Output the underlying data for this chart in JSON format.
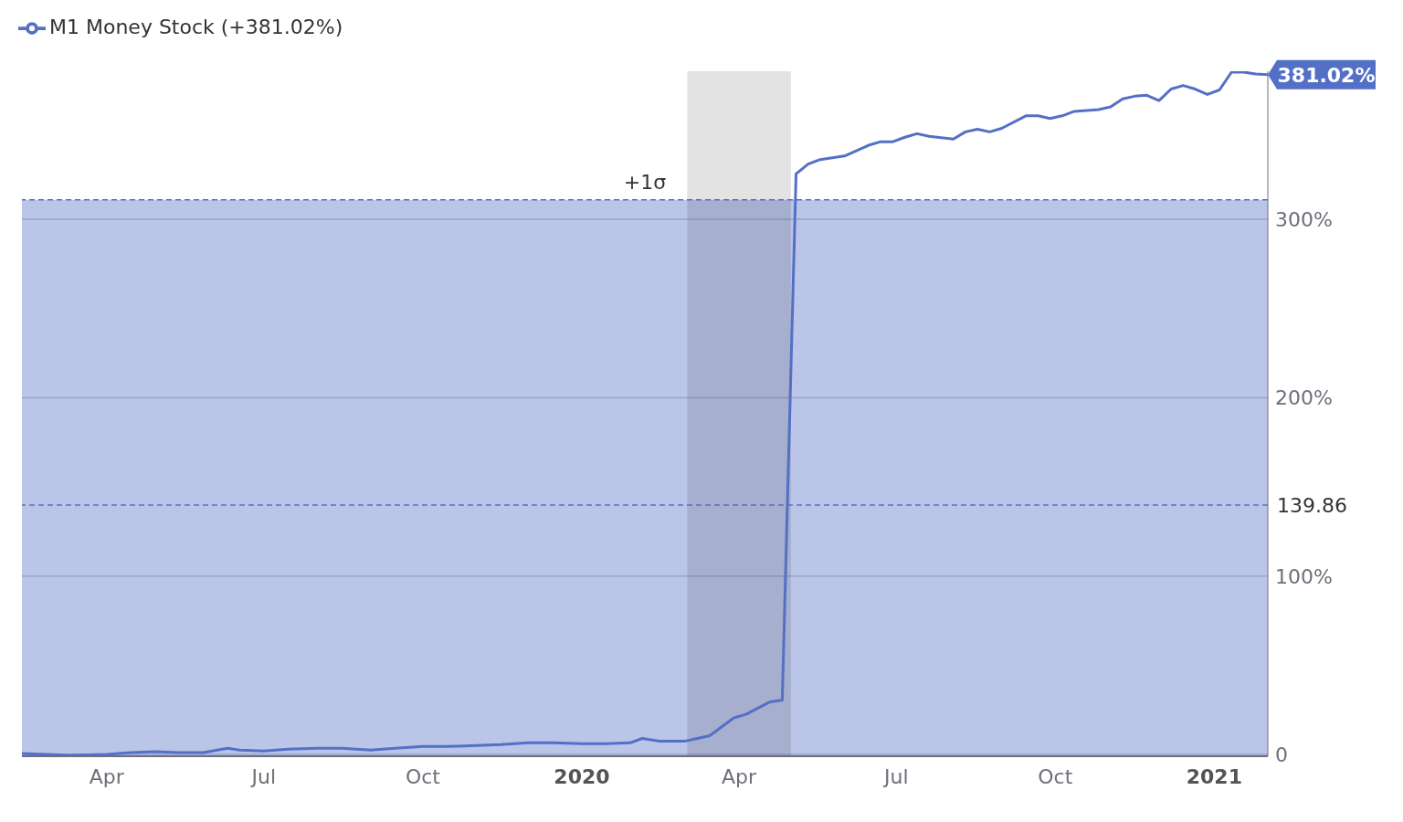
{
  "chart_data": {
    "type": "line",
    "x": [
      "2019-02-11",
      "2019-02-25",
      "2019-03-11",
      "2019-04-01",
      "2019-04-15",
      "2019-04-29",
      "2019-05-13",
      "2019-05-27",
      "2019-06-10",
      "2019-06-17",
      "2019-07-01",
      "2019-07-15",
      "2019-08-01",
      "2019-08-15",
      "2019-09-01",
      "2019-09-15",
      "2019-10-01",
      "2019-10-15",
      "2019-11-01",
      "2019-11-15",
      "2019-12-01",
      "2019-12-15",
      "2020-01-01",
      "2020-01-15",
      "2020-01-29",
      "2020-02-05",
      "2020-02-15",
      "2020-03-01",
      "2020-03-15",
      "2020-03-29",
      "2020-04-05",
      "2020-04-19",
      "2020-04-26",
      "2020-05-04",
      "2020-05-11",
      "2020-05-18",
      "2020-06-01",
      "2020-06-15",
      "2020-06-22",
      "2020-06-29",
      "2020-07-06",
      "2020-07-13",
      "2020-07-20",
      "2020-08-03",
      "2020-08-10",
      "2020-08-17",
      "2020-08-24",
      "2020-08-31",
      "2020-09-14",
      "2020-09-21",
      "2020-09-28",
      "2020-10-05",
      "2020-10-12",
      "2020-10-26",
      "2020-11-02",
      "2020-11-09",
      "2020-11-16",
      "2020-11-23",
      "2020-11-30",
      "2020-12-07",
      "2020-12-14",
      "2020-12-21",
      "2020-12-28",
      "2021-01-04",
      "2021-01-11",
      "2021-01-18",
      "2021-01-25",
      "2021-02-01"
    ],
    "series": [
      {
        "name": "M1 Money Stock (+381.02%)",
        "color": "#5470c6",
        "values": [
          0.5,
          0,
          -0.5,
          0,
          1,
          1.5,
          1,
          1,
          3.5,
          2.5,
          2,
          3,
          3.5,
          3.5,
          2.5,
          3.5,
          4.5,
          4.5,
          5,
          5.5,
          6.5,
          6.5,
          6,
          6,
          6.5,
          9,
          7.5,
          7.5,
          10.5,
          20.5,
          22.5,
          29.5,
          30.5,
          325.5,
          331,
          333.5,
          335.5,
          341.5,
          343.5,
          343.5,
          346,
          348,
          346.5,
          345,
          349,
          350.5,
          349,
          351,
          358,
          358,
          356.5,
          358,
          360.5,
          361.5,
          363,
          367.5,
          369,
          369.5,
          366.5,
          373,
          375,
          373,
          370,
          372.5,
          382.5,
          382.5,
          381.5,
          381.02
        ]
      }
    ],
    "xlim": [
      "2019-02-11",
      "2021-02-01"
    ],
    "xticks": [
      {
        "value": "2019-04-01",
        "label": "Apr"
      },
      {
        "value": "2019-07-01",
        "label": "Jul"
      },
      {
        "value": "2019-10-01",
        "label": "Oct"
      },
      {
        "value": "2020-01-01",
        "label": "2020"
      },
      {
        "value": "2020-04-01",
        "label": "Apr"
      },
      {
        "value": "2020-07-01",
        "label": "Jul"
      },
      {
        "value": "2020-10-01",
        "label": "Oct"
      },
      {
        "value": "2021-01-01",
        "label": "2021"
      }
    ],
    "ylim": [
      -1,
      383
    ],
    "yticks": [
      0,
      {
        "value": 100,
        "label": "100%"
      },
      {
        "value": 200,
        "label": "200%"
      },
      {
        "value": 300,
        "label": "300%"
      }
    ],
    "ref_lines": [
      {
        "axis": "y",
        "value": 311,
        "label": "+1σ",
        "color": "#5470c6",
        "line_style": "dashed"
      },
      {
        "axis": "y",
        "value": 139.86,
        "label": "139.86",
        "color": "#5470c6",
        "line_style": "dashed"
      }
    ],
    "bands": [
      {
        "axis": "y",
        "from": -1,
        "to": 311,
        "color": "#bbc5e8"
      },
      {
        "axis": "x",
        "from": "2020-03-02",
        "to": "2020-05-01",
        "color": "#e3e3e3"
      }
    ],
    "annotations": [
      {
        "text": "381.02%",
        "x": "2021-02-01",
        "y": 381.02
      }
    ],
    "grid": "y",
    "legend": "top left",
    "marker": "none",
    "line_style": "solid"
  }
}
